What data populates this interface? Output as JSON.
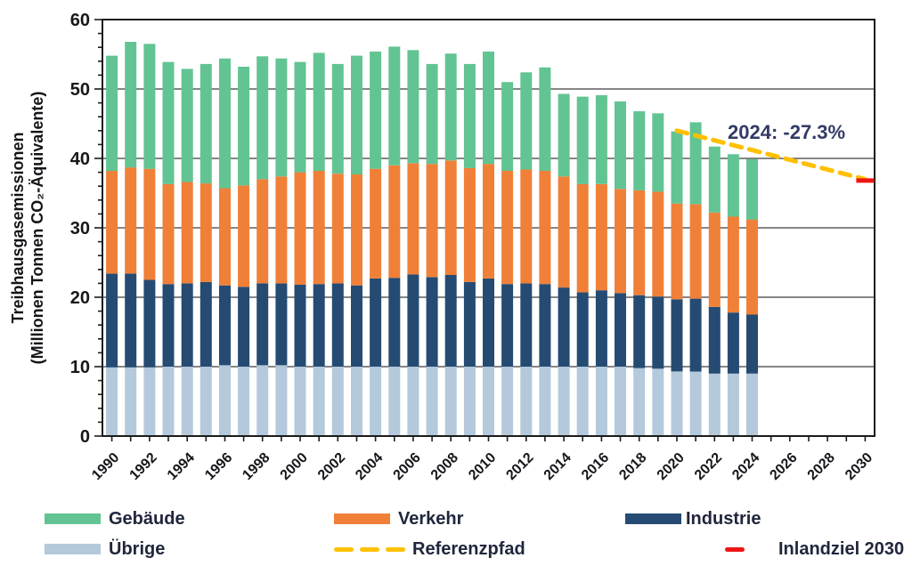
{
  "chart_data": {
    "type": "bar",
    "stacked": true,
    "ylabel_lines": [
      "Treibhausgasemissionen",
      "(Millionen Tonnen CO₂-Äquivalente)"
    ],
    "ylim": [
      0,
      60
    ],
    "yticks": [
      0,
      10,
      20,
      30,
      40,
      50,
      60
    ],
    "y_minor_step": 2,
    "xlim_years": [
      1990,
      2030
    ],
    "xticks": [
      "1990",
      "1992",
      "1994",
      "1996",
      "1998",
      "2000",
      "2002",
      "2004",
      "2006",
      "2008",
      "2010",
      "2012",
      "2014",
      "2016",
      "2018",
      "2020",
      "2022",
      "2024",
      "2026",
      "2028",
      "2030"
    ],
    "grid": "horizontal",
    "legend_position": "bottom",
    "categories": [
      1990,
      1991,
      1992,
      1993,
      1994,
      1995,
      1996,
      1997,
      1998,
      1999,
      2000,
      2001,
      2002,
      2003,
      2004,
      2005,
      2006,
      2007,
      2008,
      2009,
      2010,
      2011,
      2012,
      2013,
      2014,
      2015,
      2016,
      2017,
      2018,
      2019,
      2020,
      2021,
      2022,
      2023,
      2024
    ],
    "series": [
      {
        "name": "Übrige",
        "color": "#B4C9DB",
        "values": [
          9.9,
          9.9,
          9.9,
          10,
          10,
          10,
          10.2,
          10,
          10.2,
          10.2,
          10,
          10,
          10,
          10,
          10,
          10,
          10,
          10,
          10,
          10,
          10,
          10,
          10,
          10,
          10,
          10,
          10,
          10,
          9.8,
          9.7,
          9.3,
          9.3,
          9,
          9,
          9
        ]
      },
      {
        "name": "Industrie",
        "color": "#254B73",
        "values": [
          13.5,
          13.5,
          12.6,
          11.9,
          12,
          12.2,
          11.5,
          11.5,
          11.8,
          11.8,
          11.8,
          11.9,
          12,
          11.7,
          12.7,
          12.8,
          13.3,
          12.9,
          13.2,
          12.2,
          12.7,
          11.9,
          12,
          11.9,
          11.4,
          10.7,
          11,
          10.6,
          10.5,
          10.4,
          10.4,
          10.5,
          9.6,
          8.8,
          8.5
        ]
      },
      {
        "name": "Verkehr",
        "color": "#F08038",
        "values": [
          14.8,
          15.3,
          16,
          14.4,
          14.6,
          14.2,
          14,
          14.6,
          15,
          15.4,
          16.2,
          16.3,
          15.8,
          16,
          15.8,
          16.2,
          16,
          16.3,
          16.5,
          16.4,
          16.5,
          16.3,
          16.4,
          16.3,
          16,
          15.6,
          15.3,
          15,
          15.1,
          15.1,
          13.8,
          13.6,
          13.6,
          13.8,
          13.7
        ]
      },
      {
        "name": "Gebäude",
        "color": "#62C492",
        "values": [
          16.6,
          18.1,
          18,
          17.6,
          16.3,
          17.2,
          18.7,
          17.1,
          17.7,
          17,
          15.9,
          17,
          15.8,
          17.1,
          16.9,
          17.1,
          16.3,
          14.4,
          15.4,
          15,
          16.2,
          12.8,
          14,
          14.9,
          11.9,
          12.6,
          12.8,
          12.6,
          11.4,
          11.3,
          10.4,
          11.8,
          9.5,
          9,
          8.7
        ]
      }
    ],
    "reference_path": {
      "name": "Referenzpfad",
      "color": "#FFC000",
      "x": [
        2020,
        2030
      ],
      "y": [
        44,
        37
      ]
    },
    "inlandziel_2030": {
      "name": "Inlandziel 2030",
      "color": "#F01515",
      "x": 2030,
      "y": 37
    },
    "annotation": {
      "text": "2024: -27.3%"
    }
  }
}
